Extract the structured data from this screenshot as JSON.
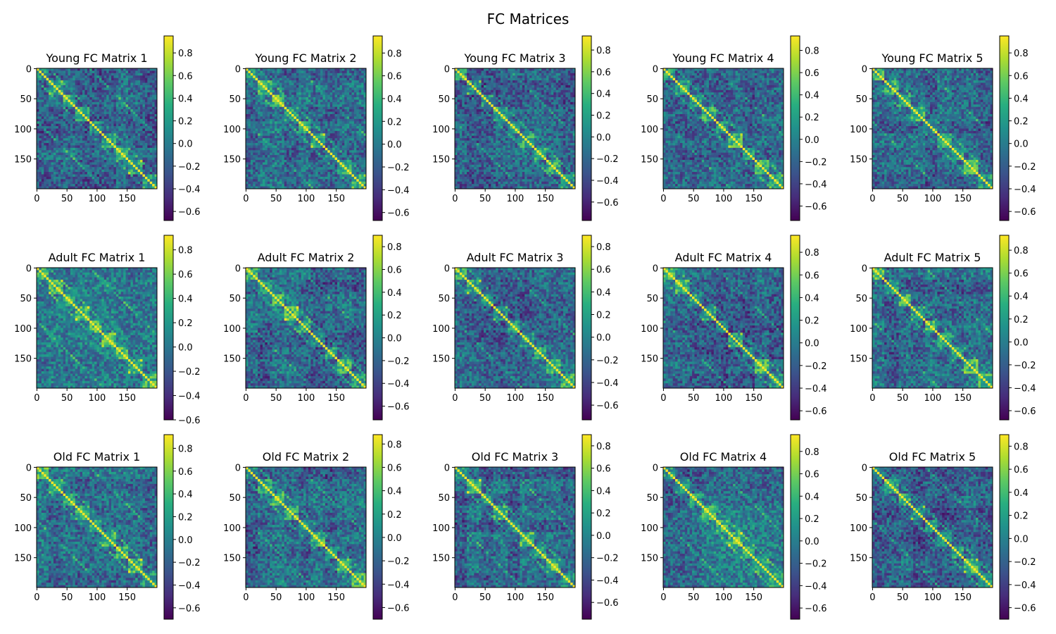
{
  "figure": {
    "title": "FC Matrices"
  },
  "chart_data": [
    {
      "type": "heatmap",
      "title": "Young FC Matrix 1",
      "xticks": [
        0,
        50,
        100,
        150
      ],
      "yticks": [
        0,
        50,
        100,
        150
      ],
      "xlim": [
        0,
        199
      ],
      "ylim": [
        199,
        0
      ],
      "colorbar": {
        "vmin": -0.68,
        "vmax": 0.95,
        "ticks": [
          -0.6,
          -0.4,
          -0.2,
          0.0,
          0.2,
          0.4,
          0.6,
          0.8
        ]
      }
    },
    {
      "type": "heatmap",
      "title": "Young FC Matrix 2",
      "xticks": [
        0,
        50,
        100,
        150
      ],
      "yticks": [
        0,
        50,
        100,
        150
      ],
      "xlim": [
        0,
        199
      ],
      "ylim": [
        199,
        0
      ],
      "colorbar": {
        "vmin": -0.67,
        "vmax": 0.95,
        "ticks": [
          -0.6,
          -0.4,
          -0.2,
          0.0,
          0.2,
          0.4,
          0.6,
          0.8
        ]
      }
    },
    {
      "type": "heatmap",
      "title": "Young FC Matrix 3",
      "xticks": [
        0,
        50,
        100,
        150
      ],
      "yticks": [
        0,
        50,
        100,
        150
      ],
      "xlim": [
        0,
        199
      ],
      "ylim": [
        199,
        0
      ],
      "colorbar": {
        "vmin": -0.77,
        "vmax": 0.93,
        "ticks": [
          -0.6,
          -0.4,
          -0.2,
          0.0,
          0.2,
          0.4,
          0.6,
          0.8
        ]
      }
    },
    {
      "type": "heatmap",
      "title": "Young FC Matrix 4",
      "xticks": [
        0,
        50,
        100,
        150
      ],
      "yticks": [
        0,
        50,
        100,
        150
      ],
      "xlim": [
        0,
        199
      ],
      "ylim": [
        199,
        0
      ],
      "colorbar": {
        "vmin": -0.73,
        "vmax": 0.93,
        "ticks": [
          -0.6,
          -0.4,
          -0.2,
          0.0,
          0.2,
          0.4,
          0.6,
          0.8
        ]
      }
    },
    {
      "type": "heatmap",
      "title": "Young FC Matrix 5",
      "xticks": [
        0,
        50,
        100,
        150
      ],
      "yticks": [
        0,
        50,
        100,
        150
      ],
      "xlim": [
        0,
        199
      ],
      "ylim": [
        199,
        0
      ],
      "colorbar": {
        "vmin": -0.68,
        "vmax": 0.95,
        "ticks": [
          -0.6,
          -0.4,
          -0.2,
          0.0,
          0.2,
          0.4,
          0.6,
          0.8
        ]
      }
    },
    {
      "type": "heatmap",
      "title": "Adult FC Matrix 1",
      "xticks": [
        0,
        50,
        100,
        150
      ],
      "yticks": [
        0,
        50,
        100,
        150
      ],
      "xlim": [
        0,
        199
      ],
      "ylim": [
        199,
        0
      ],
      "colorbar": {
        "vmin": -0.6,
        "vmax": 0.92,
        "ticks": [
          -0.6,
          -0.4,
          -0.2,
          0.0,
          0.2,
          0.4,
          0.6,
          0.8
        ]
      }
    },
    {
      "type": "heatmap",
      "title": "Adult FC Matrix 2",
      "xticks": [
        0,
        50,
        100,
        150
      ],
      "yticks": [
        0,
        50,
        100,
        150
      ],
      "xlim": [
        0,
        199
      ],
      "ylim": [
        199,
        0
      ],
      "colorbar": {
        "vmin": -0.72,
        "vmax": 0.9,
        "ticks": [
          -0.6,
          -0.4,
          -0.2,
          0.0,
          0.2,
          0.4,
          0.6,
          0.8
        ]
      }
    },
    {
      "type": "heatmap",
      "title": "Adult FC Matrix 3",
      "xticks": [
        0,
        50,
        100,
        150
      ],
      "yticks": [
        0,
        50,
        100,
        150
      ],
      "xlim": [
        0,
        199
      ],
      "ylim": [
        199,
        0
      ],
      "colorbar": {
        "vmin": -0.73,
        "vmax": 0.9,
        "ticks": [
          -0.6,
          -0.4,
          -0.2,
          0.0,
          0.2,
          0.4,
          0.6,
          0.8
        ]
      }
    },
    {
      "type": "heatmap",
      "title": "Adult FC Matrix 4",
      "xticks": [
        0,
        50,
        100,
        150
      ],
      "yticks": [
        0,
        50,
        100,
        150
      ],
      "xlim": [
        0,
        199
      ],
      "ylim": [
        199,
        0
      ],
      "colorbar": {
        "vmin": -0.68,
        "vmax": 0.95,
        "ticks": [
          -0.6,
          -0.4,
          -0.2,
          0.0,
          0.2,
          0.4,
          0.6,
          0.8
        ]
      }
    },
    {
      "type": "heatmap",
      "title": "Adult FC Matrix 5",
      "xticks": [
        0,
        50,
        100,
        150
      ],
      "yticks": [
        0,
        50,
        100,
        150
      ],
      "xlim": [
        0,
        199
      ],
      "ylim": [
        199,
        0
      ],
      "colorbar": {
        "vmin": -0.68,
        "vmax": 0.93,
        "ticks": [
          -0.6,
          -0.4,
          -0.2,
          0.0,
          0.2,
          0.4,
          0.6,
          0.8
        ]
      }
    },
    {
      "type": "heatmap",
      "title": "Old FC Matrix 1",
      "xticks": [
        0,
        50,
        100,
        150
      ],
      "yticks": [
        0,
        50,
        100,
        150
      ],
      "xlim": [
        0,
        199
      ],
      "ylim": [
        199,
        0
      ],
      "colorbar": {
        "vmin": -0.7,
        "vmax": 0.92,
        "ticks": [
          -0.6,
          -0.4,
          -0.2,
          0.0,
          0.2,
          0.4,
          0.6,
          0.8
        ]
      }
    },
    {
      "type": "heatmap",
      "title": "Old FC Matrix 2",
      "xticks": [
        0,
        50,
        100,
        150
      ],
      "yticks": [
        0,
        50,
        100,
        150
      ],
      "xlim": [
        0,
        199
      ],
      "ylim": [
        199,
        0
      ],
      "colorbar": {
        "vmin": -0.7,
        "vmax": 0.88,
        "ticks": [
          -0.6,
          -0.4,
          -0.2,
          0.0,
          0.2,
          0.4,
          0.6,
          0.8
        ]
      }
    },
    {
      "type": "heatmap",
      "title": "Old FC Matrix 3",
      "xticks": [
        0,
        50,
        100,
        150
      ],
      "yticks": [
        0,
        50,
        100,
        150
      ],
      "xlim": [
        0,
        199
      ],
      "ylim": [
        199,
        0
      ],
      "colorbar": {
        "vmin": -0.75,
        "vmax": 0.9,
        "ticks": [
          -0.6,
          -0.4,
          -0.2,
          0.0,
          0.2,
          0.4,
          0.6,
          0.8
        ]
      }
    },
    {
      "type": "heatmap",
      "title": "Old FC Matrix 4",
      "xticks": [
        0,
        50,
        100,
        150
      ],
      "yticks": [
        0,
        50,
        100,
        150
      ],
      "xlim": [
        0,
        199
      ],
      "ylim": [
        199,
        0
      ],
      "colorbar": {
        "vmin": -0.7,
        "vmax": 0.95,
        "ticks": [
          -0.6,
          -0.4,
          -0.2,
          0.0,
          0.2,
          0.4,
          0.6,
          0.8
        ]
      }
    },
    {
      "type": "heatmap",
      "title": "Old FC Matrix 5",
      "xticks": [
        0,
        50,
        100,
        150
      ],
      "yticks": [
        0,
        50,
        100,
        150
      ],
      "xlim": [
        0,
        199
      ],
      "ylim": [
        199,
        0
      ],
      "colorbar": {
        "vmin": -0.7,
        "vmax": 0.9,
        "ticks": [
          -0.6,
          -0.4,
          -0.2,
          0.0,
          0.2,
          0.4,
          0.6,
          0.8
        ]
      }
    }
  ],
  "colormap": "viridis"
}
